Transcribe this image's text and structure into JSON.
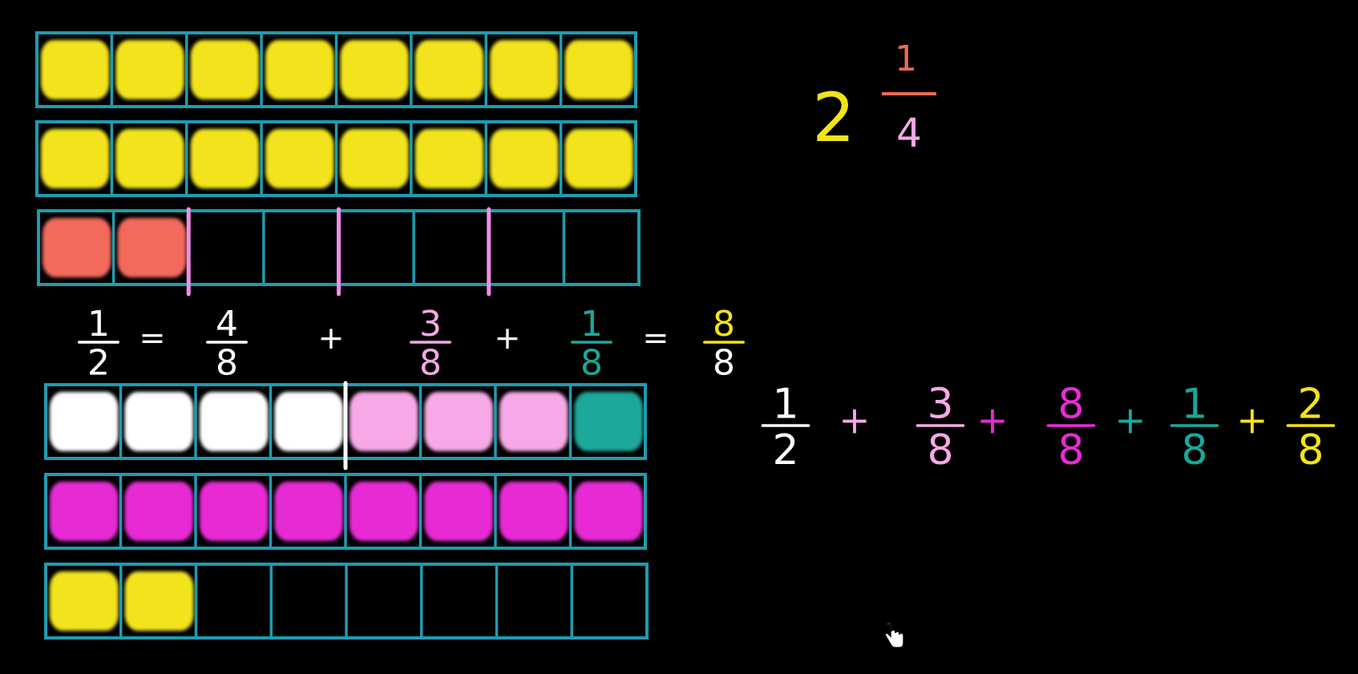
{
  "colors": {
    "grid": "#1f9bb0",
    "yellow": "#f2e31b",
    "salmon": "#f36b5d",
    "pink": "#f7a8e6",
    "magenta": "#e82bd5",
    "teal": "#1aa89a",
    "white": "#ffffff",
    "divider_pink": "#f08ee6",
    "mixed_fraction_bar": "#f06a58"
  },
  "fraction_bars": [
    {
      "name": "bar-1",
      "fill": [
        1,
        1,
        1,
        1,
        1,
        1,
        1,
        1
      ],
      "fill_colors": [
        "yellow",
        "yellow",
        "yellow",
        "yellow",
        "yellow",
        "yellow",
        "yellow",
        "yellow"
      ],
      "dividers": []
    },
    {
      "name": "bar-2",
      "fill": [
        1,
        1,
        1,
        1,
        1,
        1,
        1,
        1
      ],
      "fill_colors": [
        "yellow",
        "yellow",
        "yellow",
        "yellow",
        "yellow",
        "yellow",
        "yellow",
        "yellow"
      ],
      "dividers": []
    },
    {
      "name": "bar-3",
      "fill": [
        1,
        1,
        0,
        0,
        0,
        0,
        0,
        0
      ],
      "fill_colors": [
        "salmon",
        "salmon",
        "",
        "",
        "",
        "",
        "",
        ""
      ],
      "dividers": [
        2,
        4,
        6
      ]
    },
    {
      "name": "bar-4",
      "fill": [
        1,
        1,
        1,
        1,
        1,
        1,
        1,
        1
      ],
      "fill_colors": [
        "white",
        "white",
        "white",
        "white",
        "pink",
        "pink",
        "pink",
        "teal"
      ],
      "dividers": [
        4
      ]
    },
    {
      "name": "bar-5",
      "fill": [
        1,
        1,
        1,
        1,
        1,
        1,
        1,
        1
      ],
      "fill_colors": [
        "magenta",
        "magenta",
        "magenta",
        "magenta",
        "magenta",
        "magenta",
        "magenta",
        "magenta"
      ],
      "dividers": []
    },
    {
      "name": "bar-6",
      "fill": [
        1,
        1,
        0,
        0,
        0,
        0,
        0,
        0
      ],
      "fill_colors": [
        "yellow",
        "yellow",
        "",
        "",
        "",
        "",
        "",
        ""
      ],
      "dividers": []
    }
  ],
  "mixed_number": {
    "whole": "2",
    "numerator": "1",
    "denominator": "4"
  },
  "equation_top": [
    {
      "kind": "frac",
      "num": "1",
      "den": "2",
      "color": "white"
    },
    {
      "kind": "op",
      "text": "=",
      "color": "white"
    },
    {
      "kind": "frac",
      "num": "4",
      "den": "8",
      "color": "white"
    },
    {
      "kind": "op",
      "text": "+",
      "color": "white"
    },
    {
      "kind": "frac",
      "num": "3",
      "den": "8",
      "color": "pink"
    },
    {
      "kind": "op",
      "text": "+",
      "color": "white"
    },
    {
      "kind": "frac",
      "num": "1",
      "den": "8",
      "color": "teal"
    },
    {
      "kind": "op",
      "text": "=",
      "color": "white"
    },
    {
      "kind": "frac",
      "num": "8",
      "den": "8",
      "color": "yellow",
      "den_color": "white"
    }
  ],
  "equation_sum": [
    {
      "kind": "frac",
      "num": "1",
      "den": "2",
      "color": "white"
    },
    {
      "kind": "op",
      "text": "+",
      "color": "pink"
    },
    {
      "kind": "frac",
      "num": "3",
      "den": "8",
      "color": "pink"
    },
    {
      "kind": "op",
      "text": "+",
      "color": "magenta"
    },
    {
      "kind": "frac",
      "num": "8",
      "den": "8",
      "color": "magenta"
    },
    {
      "kind": "op",
      "text": "+",
      "color": "teal"
    },
    {
      "kind": "frac",
      "num": "1",
      "den": "8",
      "color": "teal"
    },
    {
      "kind": "op",
      "text": "+",
      "color": "yellow"
    },
    {
      "kind": "frac",
      "num": "2",
      "den": "8",
      "color": "yellow"
    }
  ],
  "cursor_icon": "hand-pointer-icon"
}
